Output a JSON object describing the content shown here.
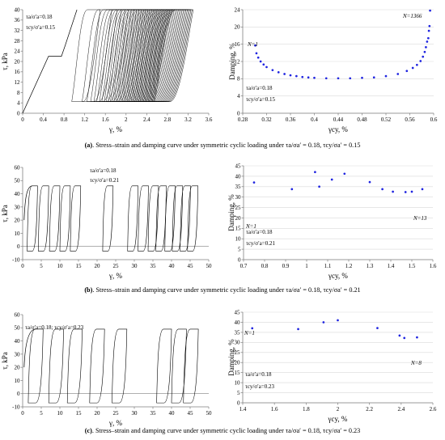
{
  "chart_data": [
    {
      "type": "line",
      "panel": "a-left",
      "xlabel": "γ, %",
      "ylabel": "τ, kPa",
      "xlim": [
        0,
        3.6
      ],
      "ylim": [
        0,
        40
      ],
      "xticks": [
        "0",
        "0.4",
        "0.8",
        "1.2",
        "1.6",
        "2",
        "2.4",
        "2.8",
        "3.2",
        "3.6"
      ],
      "yticks": [
        "0",
        "4",
        "8",
        "12",
        "16",
        "20",
        "24",
        "28",
        "32",
        "36",
        "40"
      ],
      "annotations": [
        "τa/σ′a=0.18",
        "τcy/σ′a=0.15"
      ],
      "loading_path": {
        "x": [
          0,
          0.5,
          0.75,
          0.82,
          1.05
        ],
        "y": [
          0,
          22,
          22,
          26,
          40
        ]
      },
      "loops": {
        "count": 45,
        "first_x_range": [
          0.95,
          1.5
        ],
        "last_x_range": [
          2.55,
          3.3
        ],
        "y_range": [
          4.5,
          40
        ]
      }
    },
    {
      "type": "scatter",
      "panel": "a-right",
      "xlabel": "γcy, %",
      "ylabel": "Damping, %",
      "xlim": [
        0.28,
        0.6
      ],
      "ylim": [
        0,
        24
      ],
      "xticks": [
        "0.28",
        "0.32",
        "0.36",
        "0.4",
        "0.44",
        "0.48",
        "0.52",
        "0.56",
        "0.6"
      ],
      "yticks": [
        "0",
        "4",
        "8",
        "12",
        "16",
        "20",
        "24"
      ],
      "annotations": [
        "N=1",
        "N=1366",
        "τa/σ′a=0.18",
        "τcy/σ′a=0.15"
      ],
      "points": {
        "x": [
          0.301,
          0.303,
          0.306,
          0.31,
          0.315,
          0.32,
          0.33,
          0.34,
          0.35,
          0.36,
          0.37,
          0.38,
          0.39,
          0.4,
          0.42,
          0.44,
          0.46,
          0.48,
          0.5,
          0.52,
          0.54,
          0.555,
          0.565,
          0.572,
          0.578,
          0.582,
          0.585,
          0.587,
          0.589,
          0.591,
          0.592,
          0.593,
          0.594
        ],
        "y": [
          15.7,
          13.9,
          12.9,
          12.0,
          11.3,
          10.7,
          10.0,
          9.5,
          9.1,
          8.8,
          8.6,
          8.4,
          8.3,
          8.2,
          8.1,
          8.1,
          8.1,
          8.2,
          8.3,
          8.6,
          9.1,
          9.8,
          10.5,
          11.2,
          12.1,
          13.1,
          14.2,
          15.3,
          16.6,
          17.4,
          19.1,
          20.2,
          23.8
        ]
      }
    },
    {
      "type": "line",
      "panel": "b-left",
      "xlabel": "γ, %",
      "ylabel": "τ, kPa",
      "xlim": [
        0,
        50
      ],
      "ylim": [
        -10,
        60
      ],
      "xticks": [
        "0",
        "5",
        "10",
        "15",
        "20",
        "25",
        "30",
        "35",
        "40",
        "45",
        "50"
      ],
      "yticks": [
        "-10",
        "0",
        "10",
        "20",
        "30",
        "40",
        "50",
        "60"
      ],
      "annotations": [
        "τa/σ′a=0.18",
        "τcy/σ′a=0.21"
      ],
      "loops": {
        "left_x": [
          1.2,
          4.2,
          7.2,
          10,
          12.8,
          21.5,
          28.2,
          31,
          33.7,
          35.8,
          38.2,
          40.2,
          42.3,
          44.3
        ],
        "width": 2.8,
        "top": 46,
        "bottom": -3.5
      }
    },
    {
      "type": "scatter",
      "panel": "b-right",
      "xlabel": "γcy, %",
      "ylabel": "Damping, %",
      "xlim": [
        0.7,
        1.6
      ],
      "ylim": [
        0,
        45
      ],
      "xticks": [
        "0.7",
        "0.8",
        "0.9",
        "1",
        "1.1",
        "1.2",
        "1.3",
        "1.4",
        "1.5",
        "1.6"
      ],
      "yticks": [
        "0",
        "5",
        "10",
        "15",
        "20",
        "25",
        "30",
        "35",
        "40",
        "45"
      ],
      "annotations": [
        "N=1",
        "N=13",
        "τa/σ′a=0.18",
        "τcy/σ′a=0.21"
      ],
      "points": {
        "x": [
          0.75,
          0.93,
          1.04,
          1.06,
          1.12,
          1.18,
          1.3,
          1.36,
          1.41,
          1.47,
          1.5,
          1.55
        ],
        "y": [
          37,
          33.8,
          42,
          35,
          38.4,
          41.2,
          37.2,
          33.8,
          32.6,
          32.4,
          32.6,
          33.8
        ]
      }
    },
    {
      "type": "line",
      "panel": "c-left",
      "xlabel": "γ, %",
      "ylabel": "τ, kPa",
      "xlim": [
        0,
        50
      ],
      "ylim": [
        -10,
        60
      ],
      "xticks": [
        "0",
        "5",
        "10",
        "15",
        "20",
        "25",
        "30",
        "35",
        "40",
        "45",
        "50"
      ],
      "yticks": [
        "-10",
        "0",
        "10",
        "20",
        "30",
        "40",
        "50",
        "60"
      ],
      "annotations": [
        "τa/σ′a=0.18; τcy/σ′a=0.23"
      ],
      "loops": {
        "left_x": [
          1.5,
          7,
          12,
          18,
          24,
          36,
          40,
          43.2
        ],
        "width": 4,
        "top": 49,
        "bottom": -7
      }
    },
    {
      "type": "scatter",
      "panel": "c-right",
      "xlabel": "γcy, %",
      "ylabel": "Damping, %",
      "xlim": [
        1.4,
        2.6
      ],
      "ylim": [
        0,
        45
      ],
      "xticks": [
        "1.4",
        "1.6",
        "1.8",
        "2",
        "2.2",
        "2.4",
        "2.6"
      ],
      "yticks": [
        "0",
        "5",
        "10",
        "15",
        "20",
        "25",
        "30",
        "35",
        "40",
        "45"
      ],
      "annotations": [
        "N=1",
        "N=8",
        "τa/σ′a=0.18",
        "τcy/σ′a=0.23"
      ],
      "points": {
        "x": [
          1.46,
          1.75,
          1.91,
          2.0,
          2.25,
          2.39,
          2.42,
          2.5
        ],
        "y": [
          37,
          36.6,
          40,
          41,
          37.1,
          33.4,
          32.2,
          32.5
        ]
      }
    }
  ],
  "captions": [
    {
      "label": "(a)",
      "text": ". Stress–strain and damping curve under symmetric cyclic loading under τa/σa′ = 0.18, τcy/σa′ = 0.15"
    },
    {
      "label": "(b)",
      "text": ". Stress–strain and damping curve under symmetric cyclic loading under τa/σa′ = 0.18, τcy/σa′ = 0.21"
    },
    {
      "label": "(c)",
      "text": ". Stress–strain and damping curve under symmetric cyclic loading under τa/σa′ = 0.18, τcy/σa′ = 0.23"
    }
  ],
  "colors": {
    "line": "#000000",
    "point": "#1f24e0",
    "axis": "#7f7f7f",
    "grid": "#d9d9d9"
  }
}
